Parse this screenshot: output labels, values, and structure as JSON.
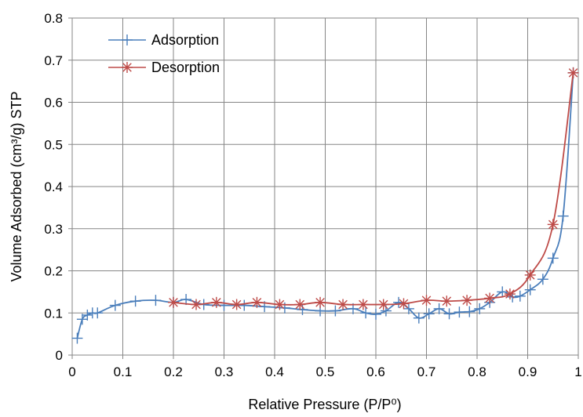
{
  "chart_data": {
    "type": "line",
    "xlabel": "Relative Pressure (P/P⁰)",
    "ylabel": "Volume Adsorbed (cm³/g) STP",
    "xlim": [
      0,
      1
    ],
    "ylim": [
      0,
      0.8
    ],
    "x_ticks": [
      "0",
      "0.1",
      "0.2",
      "0.3",
      "0.4",
      "0.5",
      "0.6",
      "0.7",
      "0.8",
      "0.9",
      "1"
    ],
    "y_ticks": [
      "0",
      "0.1",
      "0.2",
      "0.3",
      "0.4",
      "0.5",
      "0.6",
      "0.7",
      "0.8"
    ],
    "grid": true,
    "legend_position": "top-left",
    "series": [
      {
        "name": "Adsorption",
        "color": "#4a7ebb",
        "marker": "plus",
        "points": [
          [
            0.01,
            0.04
          ],
          [
            0.02,
            0.085
          ],
          [
            0.03,
            0.095
          ],
          [
            0.04,
            0.1
          ],
          [
            0.05,
            0.1
          ],
          [
            0.085,
            0.118
          ],
          [
            0.125,
            0.128
          ],
          [
            0.165,
            0.13
          ],
          [
            0.2,
            0.125
          ],
          [
            0.225,
            0.132
          ],
          [
            0.26,
            0.12
          ],
          [
            0.3,
            0.118
          ],
          [
            0.34,
            0.118
          ],
          [
            0.38,
            0.115
          ],
          [
            0.42,
            0.112
          ],
          [
            0.455,
            0.108
          ],
          [
            0.49,
            0.105
          ],
          [
            0.52,
            0.105
          ],
          [
            0.555,
            0.11
          ],
          [
            0.58,
            0.1
          ],
          [
            0.6,
            0.097
          ],
          [
            0.62,
            0.105
          ],
          [
            0.645,
            0.125
          ],
          [
            0.665,
            0.11
          ],
          [
            0.685,
            0.088
          ],
          [
            0.705,
            0.098
          ],
          [
            0.725,
            0.11
          ],
          [
            0.745,
            0.098
          ],
          [
            0.765,
            0.102
          ],
          [
            0.785,
            0.103
          ],
          [
            0.805,
            0.11
          ],
          [
            0.825,
            0.125
          ],
          [
            0.85,
            0.15
          ],
          [
            0.87,
            0.138
          ],
          [
            0.885,
            0.14
          ],
          [
            0.905,
            0.155
          ],
          [
            0.93,
            0.18
          ],
          [
            0.95,
            0.23
          ],
          [
            0.97,
            0.33
          ],
          [
            0.99,
            0.67
          ]
        ]
      },
      {
        "name": "Desorption",
        "color": "#be4b48",
        "marker": "asterisk",
        "points": [
          [
            0.99,
            0.67
          ],
          [
            0.95,
            0.31
          ],
          [
            0.905,
            0.19
          ],
          [
            0.865,
            0.145
          ],
          [
            0.825,
            0.135
          ],
          [
            0.78,
            0.13
          ],
          [
            0.74,
            0.128
          ],
          [
            0.7,
            0.13
          ],
          [
            0.655,
            0.122
          ],
          [
            0.615,
            0.12
          ],
          [
            0.575,
            0.12
          ],
          [
            0.535,
            0.12
          ],
          [
            0.49,
            0.125
          ],
          [
            0.45,
            0.12
          ],
          [
            0.41,
            0.12
          ],
          [
            0.365,
            0.125
          ],
          [
            0.325,
            0.12
          ],
          [
            0.285,
            0.125
          ],
          [
            0.245,
            0.12
          ],
          [
            0.2,
            0.125
          ]
        ]
      }
    ]
  }
}
